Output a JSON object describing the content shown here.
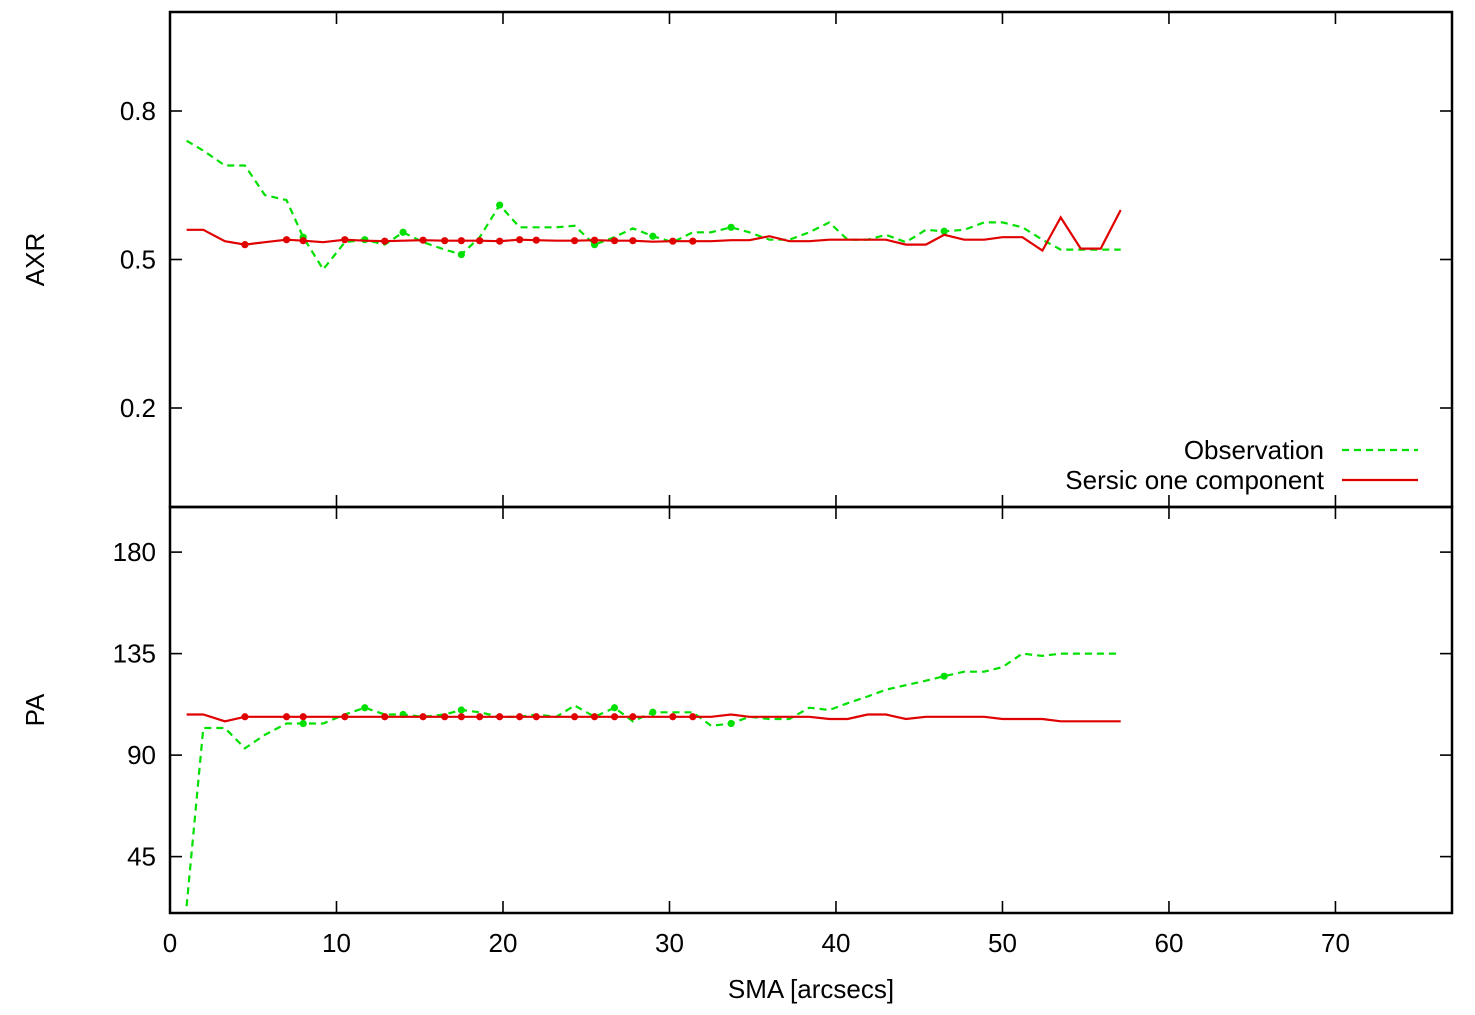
{
  "chart_data": [
    {
      "type": "line",
      "panel": "top",
      "ylabel": "AXR",
      "ylim": [
        0,
        1
      ],
      "xlim": [
        0,
        77
      ],
      "yticks": [
        0.2,
        0.5,
        0.8
      ],
      "ytick_labels": [
        "0.2",
        "0.5",
        "0.8"
      ],
      "legend": {
        "placement": "bottom-right",
        "entries": [
          "Observation",
          "Sersic one component"
        ]
      },
      "series": [
        {
          "name": "Observation",
          "color": "#00e000",
          "style": "dashed",
          "x": [
            1,
            2,
            3.3,
            4.5,
            5.7,
            7,
            8,
            9.2,
            10.5,
            11.7,
            12.9,
            14,
            15.2,
            16.5,
            17.5,
            18.6,
            19.8,
            21,
            22,
            23.2,
            24.3,
            25.5,
            26.7,
            27.8,
            29,
            30.2,
            31.4,
            32.5,
            33.7,
            34.8,
            36,
            37.2,
            38.4,
            39.6,
            40.7,
            41.9,
            43,
            44.2,
            45.4,
            46.5,
            47.7,
            48.9,
            50,
            51.2,
            52.4,
            53.5,
            54.7,
            55.9,
            57.1
          ],
          "y": [
            0.74,
            0.72,
            0.69,
            0.69,
            0.63,
            0.62,
            0.545,
            0.48,
            0.535,
            0.54,
            0.53,
            0.555,
            0.535,
            0.52,
            0.51,
            0.545,
            0.61,
            0.565,
            0.565,
            0.565,
            0.568,
            0.53,
            0.545,
            0.563,
            0.547,
            0.535,
            0.555,
            0.555,
            0.565,
            0.555,
            0.54,
            0.54,
            0.555,
            0.575,
            0.54,
            0.54,
            0.55,
            0.535,
            0.56,
            0.557,
            0.56,
            0.575,
            0.575,
            0.565,
            0.54,
            0.52,
            0.52,
            0.52,
            0.52
          ],
          "markers_at": [
            8,
            11.7,
            14,
            17.5,
            19.8,
            25.5,
            29,
            33.7,
            46.5
          ]
        },
        {
          "name": "Sersic one component",
          "color": "#e00000",
          "style": "solid",
          "x": [
            1,
            2,
            3.3,
            4.5,
            5.7,
            7,
            8,
            9.2,
            10.5,
            11.7,
            12.9,
            14,
            15.2,
            16.5,
            17.5,
            18.6,
            19.8,
            21,
            22,
            23.2,
            24.3,
            25.5,
            26.7,
            27.8,
            29,
            30.2,
            31.4,
            32.5,
            33.7,
            34.8,
            36,
            37.2,
            38.4,
            39.6,
            40.7,
            41.9,
            43,
            44.2,
            45.4,
            46.5,
            47.7,
            48.9,
            50,
            51.2,
            52.4,
            53.5,
            54.7,
            55.9,
            57.1
          ],
          "y": [
            0.56,
            0.56,
            0.537,
            0.53,
            0.535,
            0.54,
            0.538,
            0.535,
            0.54,
            0.538,
            0.537,
            0.538,
            0.539,
            0.538,
            0.538,
            0.538,
            0.537,
            0.54,
            0.539,
            0.538,
            0.538,
            0.539,
            0.538,
            0.538,
            0.536,
            0.537,
            0.537,
            0.537,
            0.539,
            0.539,
            0.547,
            0.537,
            0.537,
            0.54,
            0.54,
            0.54,
            0.54,
            0.53,
            0.53,
            0.55,
            0.54,
            0.54,
            0.545,
            0.545,
            0.518,
            0.585,
            0.522,
            0.522,
            0.6
          ],
          "markers_at": [
            4.5,
            7,
            8,
            10.5,
            12.9,
            15.2,
            16.5,
            17.5,
            18.6,
            19.8,
            21,
            22,
            24.3,
            25.5,
            26.7,
            27.8,
            30.2,
            31.4
          ]
        }
      ]
    },
    {
      "type": "line",
      "panel": "bottom",
      "ylabel": "PA",
      "xlabel": "SMA [arcsecs]",
      "ylim": [
        20,
        200
      ],
      "xlim": [
        0,
        77
      ],
      "yticks": [
        45,
        90,
        135,
        180
      ],
      "ytick_labels": [
        "45",
        "90",
        "135",
        "180"
      ],
      "xticks": [
        0,
        10,
        20,
        30,
        40,
        50,
        60,
        70
      ],
      "xtick_labels": [
        "0",
        "10",
        "20",
        "30",
        "40",
        "50",
        "60",
        "70"
      ],
      "series": [
        {
          "name": "Observation",
          "color": "#00e000",
          "style": "dashed",
          "x": [
            1,
            2,
            3.3,
            4.5,
            5.7,
            7,
            8,
            9.2,
            10.5,
            11.7,
            12.9,
            14,
            15.2,
            16.5,
            17.5,
            18.6,
            19.8,
            21,
            22,
            23.2,
            24.3,
            25.5,
            26.7,
            27.8,
            29,
            30.2,
            31.4,
            32.5,
            33.7,
            34.8,
            36,
            37.2,
            38.4,
            39.6,
            40.7,
            41.9,
            43,
            44.2,
            45.4,
            46.5,
            47.7,
            48.9,
            50,
            51.2,
            52.4,
            53.5,
            54.7,
            55.9,
            57.1
          ],
          "y": [
            23,
            102,
            102,
            93,
            99,
            104,
            104,
            104,
            108,
            111,
            108,
            108,
            107,
            108,
            110,
            109,
            107,
            107,
            108,
            107,
            112,
            107,
            111,
            105,
            109,
            109,
            109,
            103,
            104,
            107,
            106,
            106,
            111,
            110,
            113,
            116,
            119,
            121,
            123,
            125,
            127,
            127,
            129,
            135,
            134,
            135,
            135,
            135,
            135
          ],
          "markers_at": [
            8,
            11.7,
            14,
            17.5,
            26.7,
            29,
            33.7,
            46.5
          ]
        },
        {
          "name": "Sersic one component",
          "color": "#e00000",
          "style": "solid",
          "x": [
            1,
            2,
            3.3,
            4.5,
            5.7,
            7,
            8,
            9.2,
            10.5,
            11.7,
            12.9,
            14,
            15.2,
            16.5,
            17.5,
            18.6,
            19.8,
            21,
            22,
            23.2,
            24.3,
            25.5,
            26.7,
            27.8,
            29,
            30.2,
            31.4,
            32.5,
            33.7,
            34.8,
            36,
            37.2,
            38.4,
            39.6,
            40.7,
            41.9,
            43,
            44.2,
            45.4,
            46.5,
            47.7,
            48.9,
            50,
            51.2,
            52.4,
            53.5,
            54.7,
            55.9,
            57.1
          ],
          "y": [
            108,
            108,
            105,
            107,
            107,
            107,
            107,
            107,
            107,
            107,
            107,
            107,
            107,
            107,
            107,
            107,
            107,
            107,
            107,
            107,
            107,
            107,
            107,
            107,
            107,
            107,
            107,
            107,
            108,
            107,
            107,
            107,
            107,
            106,
            106,
            108,
            108,
            106,
            107,
            107,
            107,
            107,
            106,
            106,
            106,
            105,
            105,
            105,
            105
          ],
          "markers_at": [
            4.5,
            7,
            8,
            10.5,
            12.9,
            15.2,
            16.5,
            17.5,
            18.6,
            19.8,
            21,
            22,
            24.3,
            25.5,
            26.7,
            27.8,
            30.2,
            31.4
          ]
        }
      ]
    }
  ]
}
